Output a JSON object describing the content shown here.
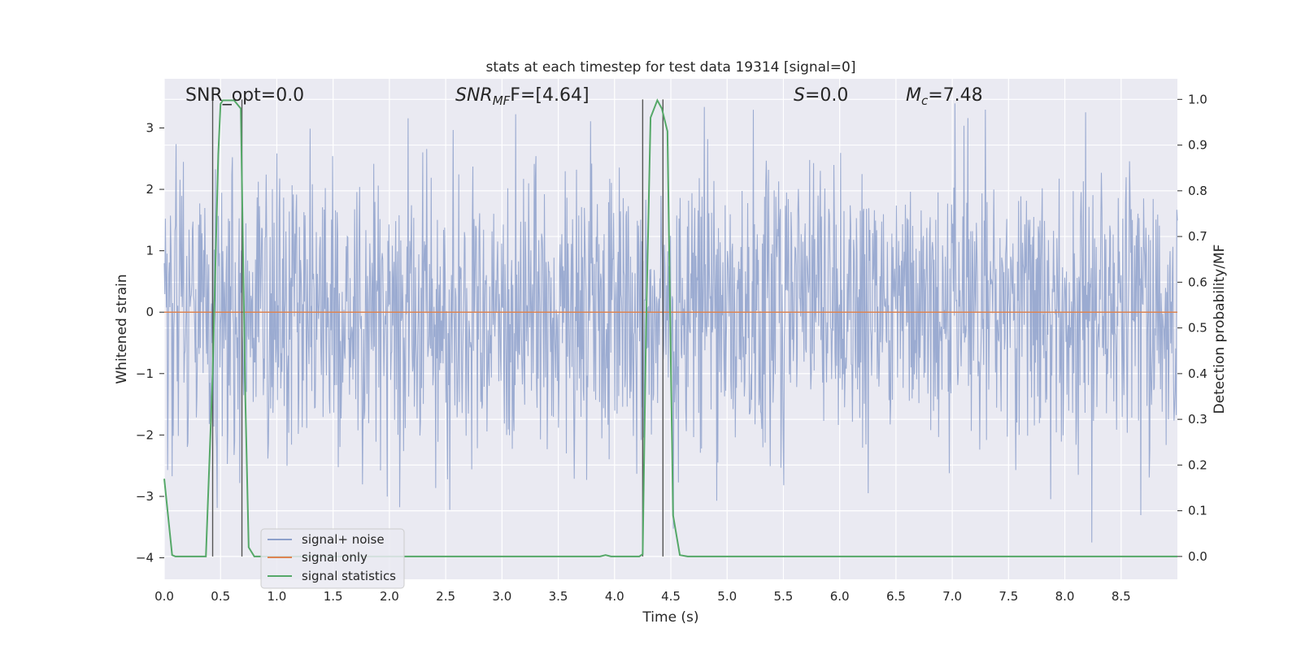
{
  "chart_data": {
    "type": "line",
    "title": "stats at each timestep for test data 19314 [signal=0]",
    "xlabel": "Time (s)",
    "ylabel": "Whitened strain",
    "y2label": "Detection probability/MF",
    "xlim": [
      0,
      9.0
    ],
    "ylim": [
      -4.35,
      3.8
    ],
    "y2lim": [
      -0.05,
      1.045
    ],
    "xticks": [
      0.0,
      0.5,
      1.0,
      1.5,
      2.0,
      2.5,
      3.0,
      3.5,
      4.0,
      4.5,
      5.0,
      5.5,
      6.0,
      6.5,
      7.0,
      7.5,
      8.0,
      8.5
    ],
    "xtick_labels": [
      "0.0",
      "0.5",
      "1.0",
      "1.5",
      "2.0",
      "2.5",
      "3.0",
      "3.5",
      "4.0",
      "4.5",
      "5.0",
      "5.5",
      "6.0",
      "6.5",
      "7.0",
      "7.5",
      "8.0",
      "8.5"
    ],
    "yticks": [
      -4,
      -3,
      -2,
      -1,
      0,
      1,
      2,
      3
    ],
    "ytick_labels": [
      "−4",
      "−3",
      "−2",
      "−1",
      "0",
      "1",
      "2",
      "3"
    ],
    "y2ticks": [
      0.0,
      0.1,
      0.2,
      0.3,
      0.4,
      0.5,
      0.6,
      0.7,
      0.8,
      0.9,
      1.0
    ],
    "y2tick_labels": [
      "0.0",
      "0.1",
      "0.2",
      "0.3",
      "0.4",
      "0.5",
      "0.6",
      "0.7",
      "0.8",
      "0.9",
      "1.0"
    ],
    "grid": true,
    "legend_position": "lower-left",
    "annotations": {
      "snr_opt": "SNR_opt=0.0",
      "snr_mf_main": "SNR",
      "snr_mf_sub": "MF",
      "snr_mf_value": "F=[4.64]",
      "s_sym": "S",
      "s_value": "=0.0",
      "mc_main": "M",
      "mc_sub": "c",
      "mc_value": "=7.48"
    },
    "series": [
      {
        "name": "signal+ noise",
        "color": "#8da0cb",
        "style": "noise",
        "x_start": 0.0,
        "x_end": 9.0,
        "envelope_typical": 1.7,
        "max": 3.4,
        "min": -3.75
      },
      {
        "name": "signal only",
        "color": "#dd8452",
        "x": [
          0.0,
          9.0
        ],
        "y": [
          0.0,
          0.0
        ]
      },
      {
        "name": "signal statistics",
        "color": "#55a868",
        "axis": "right",
        "x": [
          0.0,
          0.07,
          0.1,
          0.37,
          0.43,
          0.48,
          0.5,
          0.52,
          0.55,
          0.62,
          0.68,
          0.72,
          0.75,
          0.8,
          0.85,
          3.87,
          3.92,
          3.97,
          4.22,
          4.25,
          4.28,
          4.32,
          4.38,
          4.42,
          4.47,
          4.52,
          4.58,
          4.65,
          9.0
        ],
        "y": [
          0.17,
          0.003,
          0.0,
          0.0,
          0.4,
          0.88,
          0.99,
          0.998,
          0.998,
          0.998,
          0.98,
          0.35,
          0.02,
          0.0,
          0.0,
          0.0,
          0.003,
          0.0,
          0.0,
          0.005,
          0.5,
          0.96,
          0.998,
          0.98,
          0.93,
          0.09,
          0.003,
          0.0,
          0.0
        ]
      }
    ],
    "vlines": [
      0.43,
      0.69,
      4.25,
      4.43
    ]
  }
}
